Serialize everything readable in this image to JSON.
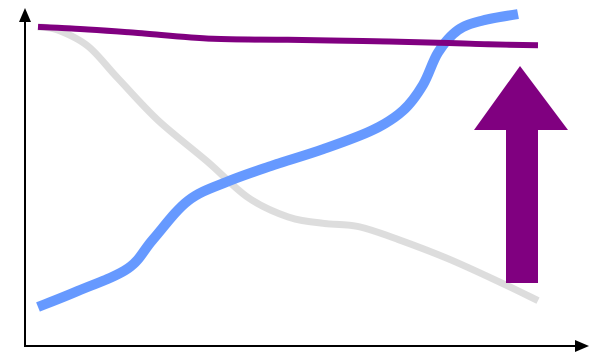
{
  "chart_data": {
    "type": "line",
    "title": "",
    "xlabel": "",
    "ylabel": "",
    "xlim": [
      0,
      100
    ],
    "ylim": [
      0,
      100
    ],
    "grid": false,
    "legend": "none",
    "series": [
      {
        "color": "#800080",
        "x": [
          0,
          10,
          20,
          35,
          50,
          65,
          80,
          90,
          100
        ],
        "y": [
          96,
          95.2,
          94.1,
          92.3,
          92,
          91.6,
          91.1,
          90.6,
          90.3
        ]
      },
      {
        "color": "#DDDDDD",
        "x": [
          0,
          4,
          10,
          16,
          24,
          34,
          42,
          50,
          57,
          64,
          72,
          82,
          92,
          100
        ],
        "y": [
          96,
          95,
          90,
          80,
          67,
          54,
          43,
          37,
          35,
          34,
          30,
          24,
          17,
          11
        ]
      },
      {
        "color": "#6699FF",
        "x": [
          0,
          8,
          18,
          23,
          30,
          38,
          47,
          57,
          67,
          73,
          77,
          80,
          84,
          89,
          96
        ],
        "y": [
          9,
          14,
          21,
          30,
          42,
          48,
          53,
          58,
          64,
          70,
          78,
          88,
          95,
          98,
          100
        ]
      }
    ],
    "annotations": [
      {
        "type": "arrow",
        "direction": "up",
        "color": "#800080"
      }
    ]
  }
}
